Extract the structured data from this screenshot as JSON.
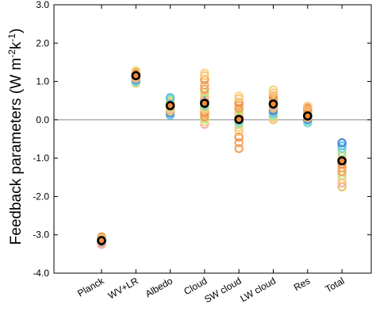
{
  "chart_data": {
    "type": "scatter",
    "title": "",
    "xlabel": "",
    "ylabel": {
      "prefix": "Feedback parameters (W m",
      "exp1": "-2",
      "mid": "k",
      "exp2": "-1",
      "suffix": ")"
    },
    "ylim": [
      -4.0,
      3.0
    ],
    "yticks": [
      "3.0",
      "2.0",
      "1.0",
      "0.0",
      "-1.0",
      "-2.0",
      "-3.0",
      "-4.0"
    ],
    "ytick_values": [
      3,
      2,
      1,
      0,
      -1,
      -2,
      -3,
      -4
    ],
    "zero_line": true,
    "grid": false,
    "legend": "none",
    "categories": [
      "Planck",
      "WV+LR",
      "Albedo",
      "Cloud",
      "SW cloud",
      "LW cloud",
      "Res",
      "Total"
    ],
    "mean_values": [
      -3.15,
      1.15,
      0.37,
      0.43,
      0.01,
      0.41,
      0.1,
      -1.07
    ],
    "model_values": [
      [
        -3.05,
        -3.08,
        -3.1,
        -3.12,
        -3.14,
        -3.16,
        -3.18,
        -3.2,
        -3.22,
        -3.25
      ],
      [
        0.95,
        0.98,
        1.0,
        1.03,
        1.06,
        1.08,
        1.1,
        1.13,
        1.15,
        1.17,
        1.2,
        1.22,
        1.25,
        1.28
      ],
      [
        0.12,
        0.18,
        0.22,
        0.27,
        0.3,
        0.33,
        0.36,
        0.4,
        0.42,
        0.45,
        0.48,
        0.52,
        0.55,
        0.58
      ],
      [
        -0.12,
        -0.05,
        0.02,
        0.08,
        0.15,
        0.2,
        0.25,
        0.3,
        0.35,
        0.4,
        0.45,
        0.5,
        0.55,
        0.6,
        0.65,
        0.72,
        0.8,
        0.9,
        1.05,
        1.15,
        1.22
      ],
      [
        -0.75,
        -0.6,
        -0.45,
        -0.3,
        -0.2,
        -0.1,
        -0.05,
        0.0,
        0.05,
        0.1,
        0.15,
        0.2,
        0.25,
        0.3,
        0.38,
        0.45,
        0.55,
        0.62
      ],
      [
        0.0,
        0.05,
        0.1,
        0.15,
        0.2,
        0.25,
        0.3,
        0.35,
        0.4,
        0.45,
        0.5,
        0.55,
        0.62,
        0.7,
        0.78
      ],
      [
        -0.08,
        -0.02,
        0.02,
        0.05,
        0.08,
        0.12,
        0.15,
        0.2,
        0.25,
        0.3,
        0.35
      ],
      [
        -1.75,
        -1.65,
        -1.55,
        -1.45,
        -1.35,
        -1.25,
        -1.15,
        -1.05,
        -0.95,
        -0.85,
        -0.75,
        -0.68,
        -0.6
      ]
    ],
    "model_palette": [
      "#f4a460",
      "#f08c3c",
      "#fdbf6f",
      "#f5d27a",
      "#9fe39a",
      "#7fd6c2",
      "#5bc0eb",
      "#3a7fd5",
      "#e8c15a",
      "#f7a8a8",
      "#ffcf77",
      "#b8e986",
      "#f29a4a"
    ],
    "colors": {
      "mean_marker_edge": "#000000",
      "mean_marker_fill": "#f08c3c",
      "zero_line": "#888888",
      "axes": "#000000"
    }
  }
}
